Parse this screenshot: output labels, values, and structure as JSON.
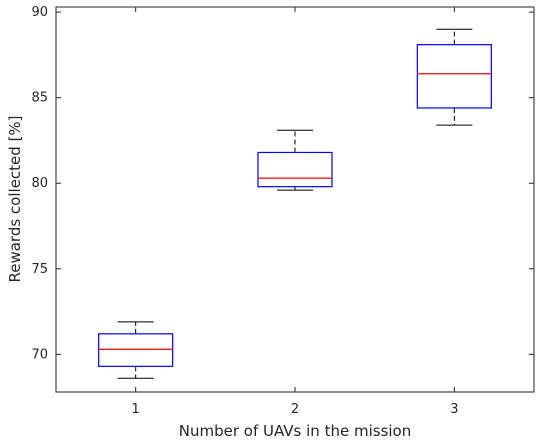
{
  "chart_data": {
    "type": "box",
    "xlabel": "Number of UAVs in the mission",
    "ylabel": "Rewards collected [%]",
    "ylim": [
      67.8,
      90.3
    ],
    "yticks": [
      70,
      75,
      80,
      85,
      90
    ],
    "categories": [
      "1",
      "2",
      "3"
    ],
    "boxes": [
      {
        "category": "1",
        "whisker_low": 68.6,
        "q1": 69.3,
        "median": 70.3,
        "q3": 71.2,
        "whisker_high": 71.9
      },
      {
        "category": "2",
        "whisker_low": 79.6,
        "q1": 79.8,
        "median": 80.3,
        "q3": 81.8,
        "whisker_high": 83.1
      },
      {
        "category": "3",
        "whisker_low": 83.4,
        "q1": 84.4,
        "median": 86.4,
        "q3": 88.1,
        "whisker_high": 89.0
      }
    ],
    "grid": false,
    "colors": {
      "box": "#0000ff",
      "median": "#ff0000",
      "whisker": "#000000",
      "axis": "#262626"
    }
  }
}
